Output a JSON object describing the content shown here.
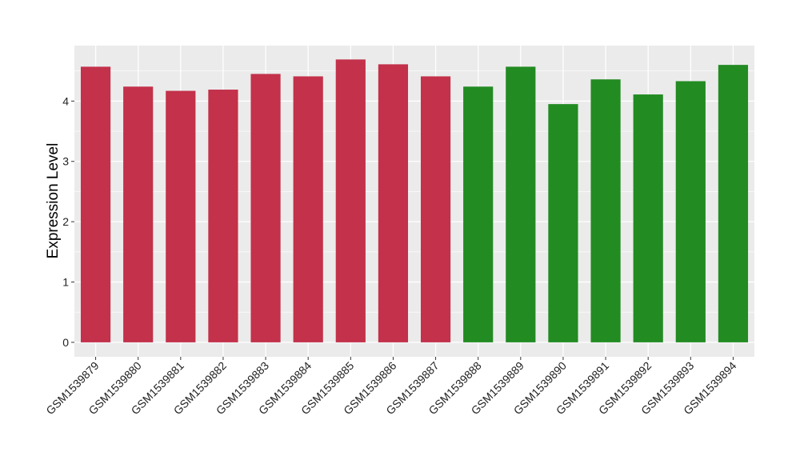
{
  "chart_data": {
    "type": "bar",
    "title": "",
    "xlabel": "",
    "ylabel": "Expression Level",
    "ylim": [
      -0.24,
      4.92
    ],
    "yticks": [
      0,
      1,
      2,
      3,
      4
    ],
    "grid": true,
    "categories": [
      "GSM1539879",
      "GSM1539880",
      "GSM1539881",
      "GSM1539882",
      "GSM1539883",
      "GSM1539884",
      "GSM1539885",
      "GSM1539886",
      "GSM1539887",
      "GSM1539888",
      "GSM1539889",
      "GSM1539890",
      "GSM1539891",
      "GSM1539892",
      "GSM1539893",
      "GSM1539894"
    ],
    "values": [
      4.57,
      4.24,
      4.17,
      4.19,
      4.45,
      4.41,
      4.69,
      4.61,
      4.41,
      4.24,
      4.57,
      3.95,
      4.36,
      4.11,
      4.33,
      4.6
    ],
    "bar_colors": [
      "#C3314A",
      "#C3314A",
      "#C3314A",
      "#C3314A",
      "#C3314A",
      "#C3314A",
      "#C3314A",
      "#C3314A",
      "#C3314A",
      "#228B22",
      "#228B22",
      "#228B22",
      "#228B22",
      "#228B22",
      "#228B22",
      "#228B22"
    ],
    "panel_background": "#EBEBEB"
  }
}
